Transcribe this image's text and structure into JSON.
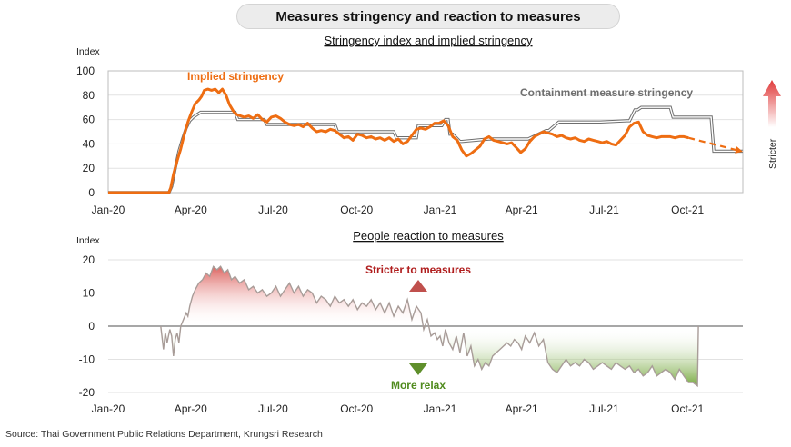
{
  "header": {
    "title": "Measures stringency and reaction to measures"
  },
  "source": "Source: Thai Government Public Relations Department, Krungsri Research",
  "colors": {
    "implied": "#ee6d12",
    "containment": "#8a8a8a",
    "positive": "#d9534f",
    "negative": "#5f9a1e"
  },
  "chart_data": [
    {
      "type": "line",
      "title": "Stringency index and implied stringency",
      "ylabel": "Index",
      "ylim": [
        0,
        100
      ],
      "yticks": [
        0,
        20,
        40,
        60,
        80,
        100
      ],
      "xlim": [
        0,
        700
      ],
      "xtick_labels": [
        "Jan-20",
        "Apr-20",
        "Jul-20",
        "Oct-20",
        "Jan-21",
        "Apr-21",
        "Jul-21",
        "Oct-21"
      ],
      "xtick_days": [
        0,
        91,
        182,
        274,
        366,
        456,
        547,
        639
      ],
      "x_unit": "days from Jan-20",
      "series": [
        {
          "name": "Containment measure stringency",
          "x": [
            0,
            67,
            70,
            74,
            78,
            82,
            86,
            90,
            94,
            98,
            102,
            105,
            140,
            143,
            172,
            175,
            250,
            253,
            315,
            318,
            340,
            342,
            368,
            372,
            375,
            377,
            380,
            388,
            390,
            420,
            423,
            460,
            463,
            483,
            486,
            497,
            500,
            540,
            543,
            572,
            575,
            581,
            584,
            588,
            620,
            623,
            665,
            668,
            700
          ],
          "y": [
            0,
            0,
            5,
            20,
            34,
            44,
            53,
            59,
            62,
            64,
            66,
            66,
            66,
            60,
            60,
            56,
            56,
            50,
            50,
            45,
            45,
            55,
            55,
            60,
            60,
            48,
            48,
            42,
            42,
            44,
            44,
            44,
            44,
            51,
            51,
            58,
            58,
            58,
            58,
            59,
            59,
            68,
            68,
            70,
            70,
            62,
            62,
            34,
            34
          ]
        },
        {
          "name": "Implied stringency",
          "x": [
            0,
            67,
            69,
            72,
            76,
            80,
            84,
            88,
            92,
            96,
            100,
            103,
            106,
            110,
            114,
            118,
            122,
            126,
            130,
            134,
            138,
            142,
            146,
            150,
            155,
            160,
            165,
            170,
            175,
            180,
            185,
            190,
            195,
            200,
            205,
            210,
            215,
            220,
            225,
            230,
            235,
            240,
            245,
            250,
            255,
            260,
            265,
            270,
            275,
            280,
            285,
            290,
            295,
            300,
            305,
            310,
            315,
            320,
            325,
            330,
            335,
            340,
            345,
            350,
            355,
            360,
            365,
            370,
            375,
            380,
            385,
            390,
            395,
            400,
            405,
            410,
            415,
            420,
            425,
            430,
            435,
            440,
            445,
            450,
            455,
            460,
            465,
            470,
            475,
            480,
            485,
            490,
            495,
            500,
            505,
            510,
            515,
            520,
            525,
            530,
            535,
            540,
            545,
            550,
            555,
            560,
            565,
            570,
            575,
            580,
            585,
            590,
            595,
            600,
            605,
            610,
            615,
            620,
            625,
            630,
            635,
            640
          ],
          "y": [
            0,
            0,
            4,
            15,
            26,
            36,
            48,
            58,
            66,
            73,
            76,
            79,
            84,
            85,
            84,
            85,
            82,
            85,
            80,
            72,
            67,
            64,
            63,
            62,
            63,
            61,
            64,
            60,
            58,
            62,
            63,
            61,
            58,
            56,
            55,
            56,
            54,
            57,
            53,
            50,
            51,
            50,
            52,
            51,
            48,
            45,
            46,
            43,
            48,
            47,
            45,
            46,
            44,
            45,
            43,
            45,
            42,
            44,
            40,
            42,
            47,
            52,
            53,
            52,
            54,
            57,
            57,
            59,
            55,
            46,
            43,
            35,
            30,
            32,
            35,
            38,
            44,
            46,
            43,
            42,
            41,
            40,
            41,
            37,
            33,
            36,
            42,
            46,
            48,
            50,
            49,
            48,
            46,
            47,
            45,
            44,
            45,
            43,
            42,
            44,
            43,
            42,
            41,
            42,
            40,
            39,
            43,
            47,
            54,
            57,
            58,
            50,
            47,
            46,
            45,
            46,
            46,
            46,
            45,
            46,
            46,
            45
          ]
        }
      ],
      "forecast": {
        "from": [
          640,
          45
        ],
        "to": [
          698,
          34
        ]
      },
      "annotations": [
        "Implied stringency",
        "Containment measure stringency",
        "Stricter"
      ]
    },
    {
      "type": "area",
      "title": "People reaction to measures",
      "ylabel": "Index",
      "ylim": [
        -20,
        20
      ],
      "yticks": [
        -20,
        -10,
        0,
        10,
        20
      ],
      "xlim": [
        0,
        700
      ],
      "xtick_labels": [
        "Jan-20",
        "Apr-20",
        "Jul-20",
        "Oct-20",
        "Jan-21",
        "Apr-21",
        "Jul-21",
        "Oct-21"
      ],
      "xtick_days": [
        0,
        91,
        182,
        274,
        366,
        456,
        547,
        639
      ],
      "series": [
        {
          "name": "People reaction",
          "x": [
            58,
            61,
            63,
            65,
            68,
            70,
            72,
            74,
            76,
            78,
            80,
            83,
            86,
            88,
            90,
            93,
            96,
            100,
            104,
            108,
            112,
            116,
            120,
            124,
            128,
            132,
            136,
            140,
            145,
            150,
            155,
            160,
            165,
            170,
            175,
            180,
            185,
            190,
            195,
            200,
            205,
            210,
            215,
            220,
            225,
            230,
            235,
            240,
            245,
            250,
            255,
            260,
            265,
            270,
            275,
            280,
            285,
            290,
            295,
            300,
            305,
            310,
            315,
            320,
            325,
            330,
            335,
            340,
            345,
            348,
            352,
            356,
            360,
            363,
            366,
            369,
            372,
            376,
            380,
            384,
            388,
            392,
            396,
            400,
            404,
            408,
            412,
            416,
            420,
            424,
            428,
            432,
            436,
            440,
            444,
            448,
            452,
            456,
            460,
            465,
            470,
            475,
            480,
            485,
            490,
            495,
            500,
            505,
            510,
            515,
            520,
            525,
            530,
            535,
            540,
            545,
            550,
            555,
            560,
            565,
            570,
            575,
            580,
            585,
            590,
            595,
            600,
            605,
            610,
            615,
            620,
            625,
            630,
            635,
            640,
            645,
            650,
            651
          ],
          "y": [
            0,
            -7,
            -2,
            -5,
            -1,
            -3,
            -9,
            -4,
            -2,
            -5,
            0,
            2,
            4,
            3,
            6,
            9,
            11,
            13,
            14,
            16,
            15,
            18,
            17,
            18,
            16,
            17,
            14,
            15,
            13,
            14,
            11,
            12,
            10,
            11,
            9,
            10,
            12,
            9,
            11,
            13,
            10,
            12,
            9,
            11,
            10,
            7,
            9,
            8,
            6,
            9,
            7,
            8,
            6,
            8,
            5,
            7,
            6,
            8,
            5,
            7,
            4,
            7,
            3,
            6,
            4,
            8,
            2,
            6,
            4,
            -1,
            2,
            -3,
            -2,
            -4,
            -3,
            -6,
            -1,
            -5,
            -7,
            -3,
            -8,
            -2,
            -9,
            -6,
            -12,
            -10,
            -13,
            -11,
            -12,
            -9,
            -8,
            -7,
            -6,
            -5,
            -6,
            -4,
            -5,
            -7,
            -3,
            -5,
            -2,
            -6,
            -4,
            -11,
            -13,
            -14,
            -12,
            -10,
            -12,
            -11,
            -12,
            -10,
            -11,
            -13,
            -12,
            -11,
            -12,
            -13,
            -11,
            -12,
            -13,
            -12,
            -14,
            -13,
            -15,
            -14,
            -12,
            -15,
            -14,
            -13,
            -14,
            -16,
            -13,
            -15,
            -17,
            -17,
            -18,
            0
          ]
        }
      ],
      "annotations": [
        "Stricter to measures",
        "More relax"
      ]
    }
  ]
}
